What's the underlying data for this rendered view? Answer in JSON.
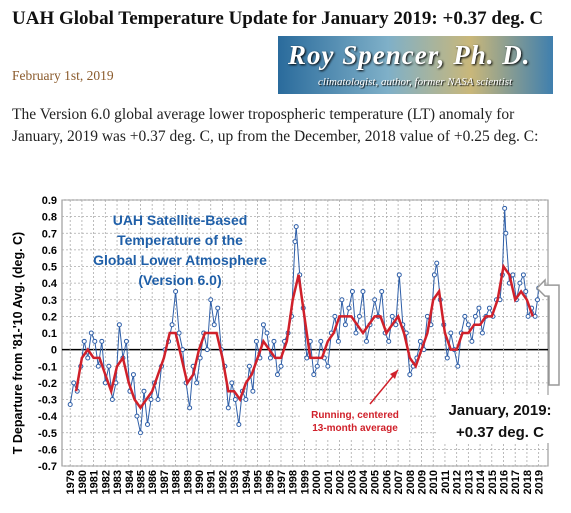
{
  "header": {
    "title": "UAH Global Temperature Update for January 2019: +0.37 deg. C",
    "date": "February 1st, 2019",
    "banner_title": "Roy Spencer, Ph. D.",
    "banner_subtitle": "climatologist, author, former NASA scientist"
  },
  "body": {
    "paragraph": "The Version 6.0 global average lower tropospheric temperature (LT) anomaly for January, 2019 was +0.37 deg. C, up from the December, 2018 value of +0.25 deg. C:"
  },
  "chart_data": {
    "type": "line",
    "title": [
      "UAH Satellite-Based",
      "Temperature of the",
      "Global Lower Atmosphere",
      "(Version 6.0)"
    ],
    "y_label": "T Departure from '81-'10 Avg. (deg. C)",
    "annotations": [
      [
        "Running, centered",
        "13-month average"
      ],
      [
        "January, 2019:",
        "+0.37 deg. C"
      ]
    ],
    "xlim": [
      1978.3,
      2019.8
    ],
    "xticks": [
      1979,
      1980,
      1981,
      1982,
      1983,
      1984,
      1985,
      1986,
      1987,
      1988,
      1989,
      1990,
      1991,
      1992,
      1993,
      1994,
      1995,
      1996,
      1997,
      1998,
      1999,
      2000,
      2001,
      2002,
      2003,
      2004,
      2005,
      2006,
      2007,
      2008,
      2009,
      2010,
      2011,
      2012,
      2013,
      2014,
      2015,
      2016,
      2017,
      2018,
      2019
    ],
    "ylim": [
      -0.7,
      0.9
    ],
    "yticks": [
      -0.7,
      -0.6,
      -0.5,
      -0.4,
      -0.3,
      -0.2,
      -0.1,
      0,
      0.1,
      0.2,
      0.3,
      0.4,
      0.5,
      0.6,
      0.7,
      0.8,
      0.9
    ],
    "grid": true,
    "series": [
      {
        "color": "#2f5fa8",
        "markers": true,
        "x": [
          1979.0,
          1979.3,
          1979.6,
          1979.9,
          1980.2,
          1980.5,
          1980.8,
          1981.1,
          1981.4,
          1981.7,
          1982.0,
          1982.3,
          1982.6,
          1982.9,
          1983.2,
          1983.5,
          1983.8,
          1984.1,
          1984.4,
          1984.7,
          1985.0,
          1985.3,
          1985.6,
          1985.9,
          1986.2,
          1986.5,
          1986.8,
          1987.1,
          1987.4,
          1987.7,
          1988.0,
          1988.3,
          1988.6,
          1988.9,
          1989.2,
          1989.5,
          1989.8,
          1990.1,
          1990.4,
          1990.7,
          1991.0,
          1991.3,
          1991.6,
          1991.9,
          1992.2,
          1992.5,
          1992.8,
          1993.1,
          1993.4,
          1993.7,
          1994.0,
          1994.3,
          1994.6,
          1994.9,
          1995.2,
          1995.5,
          1995.8,
          1996.1,
          1996.4,
          1996.7,
          1997.0,
          1997.3,
          1997.6,
          1997.9,
          1998.2,
          1998.3,
          1998.6,
          1998.9,
          1999.2,
          1999.5,
          1999.8,
          2000.1,
          2000.4,
          2000.7,
          2001.0,
          2001.3,
          2001.6,
          2001.9,
          2002.2,
          2002.5,
          2002.8,
          2003.1,
          2003.4,
          2003.7,
          2004.0,
          2004.3,
          2004.6,
          2005.0,
          2005.3,
          2005.6,
          2005.9,
          2006.2,
          2006.5,
          2006.8,
          2007.1,
          2007.4,
          2007.7,
          2008.0,
          2008.3,
          2008.6,
          2008.9,
          2009.2,
          2009.5,
          2009.8,
          2010.1,
          2010.3,
          2010.6,
          2010.9,
          2011.2,
          2011.5,
          2011.8,
          2012.1,
          2012.4,
          2012.7,
          2013.0,
          2013.3,
          2013.6,
          2013.9,
          2014.2,
          2014.5,
          2014.8,
          2015.1,
          2015.4,
          2015.7,
          2015.9,
          2016.1,
          2016.2,
          2016.5,
          2016.8,
          2017.1,
          2017.4,
          2017.7,
          2017.9,
          2018.1,
          2018.4,
          2018.7,
          2018.9,
          2019.0
        ],
        "values": [
          -0.33,
          -0.2,
          -0.25,
          -0.1,
          0.05,
          -0.05,
          0.1,
          0.05,
          -0.1,
          0.05,
          -0.2,
          -0.1,
          -0.3,
          -0.2,
          0.15,
          -0.05,
          0.05,
          -0.25,
          -0.15,
          -0.4,
          -0.5,
          -0.25,
          -0.45,
          -0.3,
          -0.2,
          -0.3,
          -0.1,
          0.0,
          0.05,
          0.15,
          0.35,
          0.1,
          0.0,
          -0.2,
          -0.35,
          -0.1,
          -0.2,
          -0.05,
          0.1,
          0.0,
          0.3,
          0.15,
          0.25,
          0.0,
          -0.1,
          -0.35,
          -0.2,
          -0.3,
          -0.45,
          -0.25,
          -0.3,
          -0.1,
          -0.25,
          0.05,
          -0.05,
          0.15,
          0.1,
          -0.05,
          0.05,
          -0.15,
          -0.1,
          0.05,
          0.1,
          0.2,
          0.65,
          0.74,
          0.45,
          0.25,
          -0.05,
          0.05,
          -0.15,
          -0.1,
          0.05,
          -0.05,
          -0.1,
          0.1,
          0.2,
          0.05,
          0.3,
          0.15,
          0.25,
          0.35,
          0.1,
          0.2,
          0.35,
          0.05,
          0.15,
          0.3,
          0.2,
          0.35,
          0.1,
          0.05,
          0.2,
          0.15,
          0.45,
          0.15,
          0.1,
          -0.15,
          -0.1,
          -0.05,
          0.05,
          0.0,
          0.2,
          0.15,
          0.45,
          0.52,
          0.3,
          0.15,
          -0.05,
          0.1,
          0.0,
          -0.1,
          0.1,
          0.2,
          0.15,
          0.05,
          0.2,
          0.25,
          0.1,
          0.2,
          0.25,
          0.2,
          0.3,
          0.3,
          0.45,
          0.85,
          0.7,
          0.4,
          0.45,
          0.3,
          0.4,
          0.45,
          0.35,
          0.2,
          0.25,
          0.2,
          0.3,
          0.37
        ]
      },
      {
        "color": "#d0202a",
        "markers": false,
        "x": [
          1979.5,
          1980.0,
          1980.5,
          1981.0,
          1981.5,
          1982.0,
          1982.5,
          1983.0,
          1983.5,
          1984.0,
          1984.5,
          1985.0,
          1985.5,
          1986.0,
          1986.5,
          1987.0,
          1987.5,
          1988.0,
          1988.5,
          1989.0,
          1989.5,
          1990.0,
          1990.5,
          1991.0,
          1991.5,
          1992.0,
          1992.5,
          1993.0,
          1993.5,
          1994.0,
          1994.5,
          1995.0,
          1995.5,
          1996.0,
          1996.5,
          1997.0,
          1997.5,
          1998.0,
          1998.5,
          1999.0,
          1999.5,
          2000.0,
          2000.5,
          2001.0,
          2001.5,
          2002.0,
          2002.5,
          2003.0,
          2003.5,
          2004.0,
          2004.5,
          2005.0,
          2005.5,
          2006.0,
          2006.5,
          2007.0,
          2007.5,
          2008.0,
          2008.5,
          2009.0,
          2009.5,
          2010.0,
          2010.5,
          2011.0,
          2011.5,
          2012.0,
          2012.5,
          2013.0,
          2013.5,
          2014.0,
          2014.5,
          2015.0,
          2015.5,
          2016.0,
          2016.5,
          2017.0,
          2017.5,
          2018.0,
          2018.5
        ],
        "values": [
          -0.25,
          -0.05,
          0.0,
          -0.05,
          -0.05,
          -0.15,
          -0.25,
          -0.1,
          -0.05,
          -0.2,
          -0.3,
          -0.35,
          -0.3,
          -0.25,
          -0.15,
          -0.05,
          0.1,
          0.1,
          -0.05,
          -0.2,
          -0.15,
          0.0,
          0.1,
          0.1,
          0.1,
          -0.05,
          -0.25,
          -0.25,
          -0.3,
          -0.2,
          -0.15,
          -0.05,
          0.05,
          0.0,
          -0.05,
          -0.05,
          0.05,
          0.3,
          0.45,
          0.2,
          -0.05,
          -0.05,
          -0.05,
          0.05,
          0.1,
          0.2,
          0.2,
          0.2,
          0.15,
          0.1,
          0.15,
          0.2,
          0.2,
          0.1,
          0.15,
          0.2,
          0.1,
          -0.05,
          -0.1,
          0.0,
          0.1,
          0.3,
          0.35,
          0.1,
          0.0,
          0.0,
          0.1,
          0.1,
          0.15,
          0.15,
          0.2,
          0.2,
          0.3,
          0.5,
          0.45,
          0.3,
          0.35,
          0.3,
          0.2
        ]
      }
    ]
  }
}
